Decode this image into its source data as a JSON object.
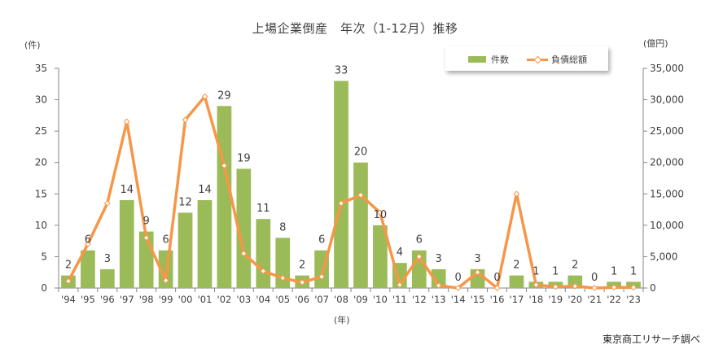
{
  "chart_data": {
    "type": "bar+line",
    "title": "上場企業倒産　年次（1-12月）推移",
    "xlabel": "(年)",
    "ylabel_left": "(件)",
    "ylabel_right": "(億円)",
    "source": "東京商工リサーチ調べ",
    "categories": [
      "'94",
      "'95",
      "'96",
      "'97",
      "'98",
      "'99",
      "'00",
      "'01",
      "'02",
      "'03",
      "'04",
      "'05",
      "'06",
      "'07",
      "'08",
      "'09",
      "'10",
      "'11",
      "'12",
      "'13",
      "'14",
      "'15",
      "'16",
      "'17",
      "'18",
      "'19",
      "'20",
      "'21",
      "'22",
      "'23"
    ],
    "series": [
      {
        "name": "件数",
        "type": "bar",
        "axis": "left",
        "color": "#9bbb59",
        "values": [
          2,
          6,
          3,
          14,
          9,
          6,
          12,
          14,
          29,
          19,
          11,
          8,
          2,
          6,
          33,
          20,
          10,
          4,
          6,
          3,
          0,
          3,
          0,
          2,
          1,
          1,
          2,
          0,
          1,
          1
        ]
      },
      {
        "name": "負債総額",
        "type": "line",
        "axis": "right",
        "color": "#f79646",
        "values": [
          1100,
          7000,
          13500,
          26500,
          8000,
          1200,
          26800,
          30500,
          19500,
          5500,
          2700,
          1600,
          900,
          1800,
          13500,
          14800,
          12000,
          500,
          5000,
          400,
          0,
          2500,
          0,
          15000,
          500,
          200,
          300,
          0,
          100,
          100
        ]
      }
    ],
    "ylim_left": [
      0,
      35
    ],
    "ylim_right": [
      0,
      35000
    ],
    "yticks_left": [
      "0",
      "5",
      "10",
      "15",
      "20",
      "25",
      "30",
      "35"
    ],
    "yticks_right": [
      "0",
      "5,000",
      "10,000",
      "15,000",
      "20,000",
      "25,000",
      "30,000",
      "35,000"
    ],
    "legend": {
      "position": "top-right",
      "bar_label": "件数",
      "line_label": "負債総額"
    }
  }
}
